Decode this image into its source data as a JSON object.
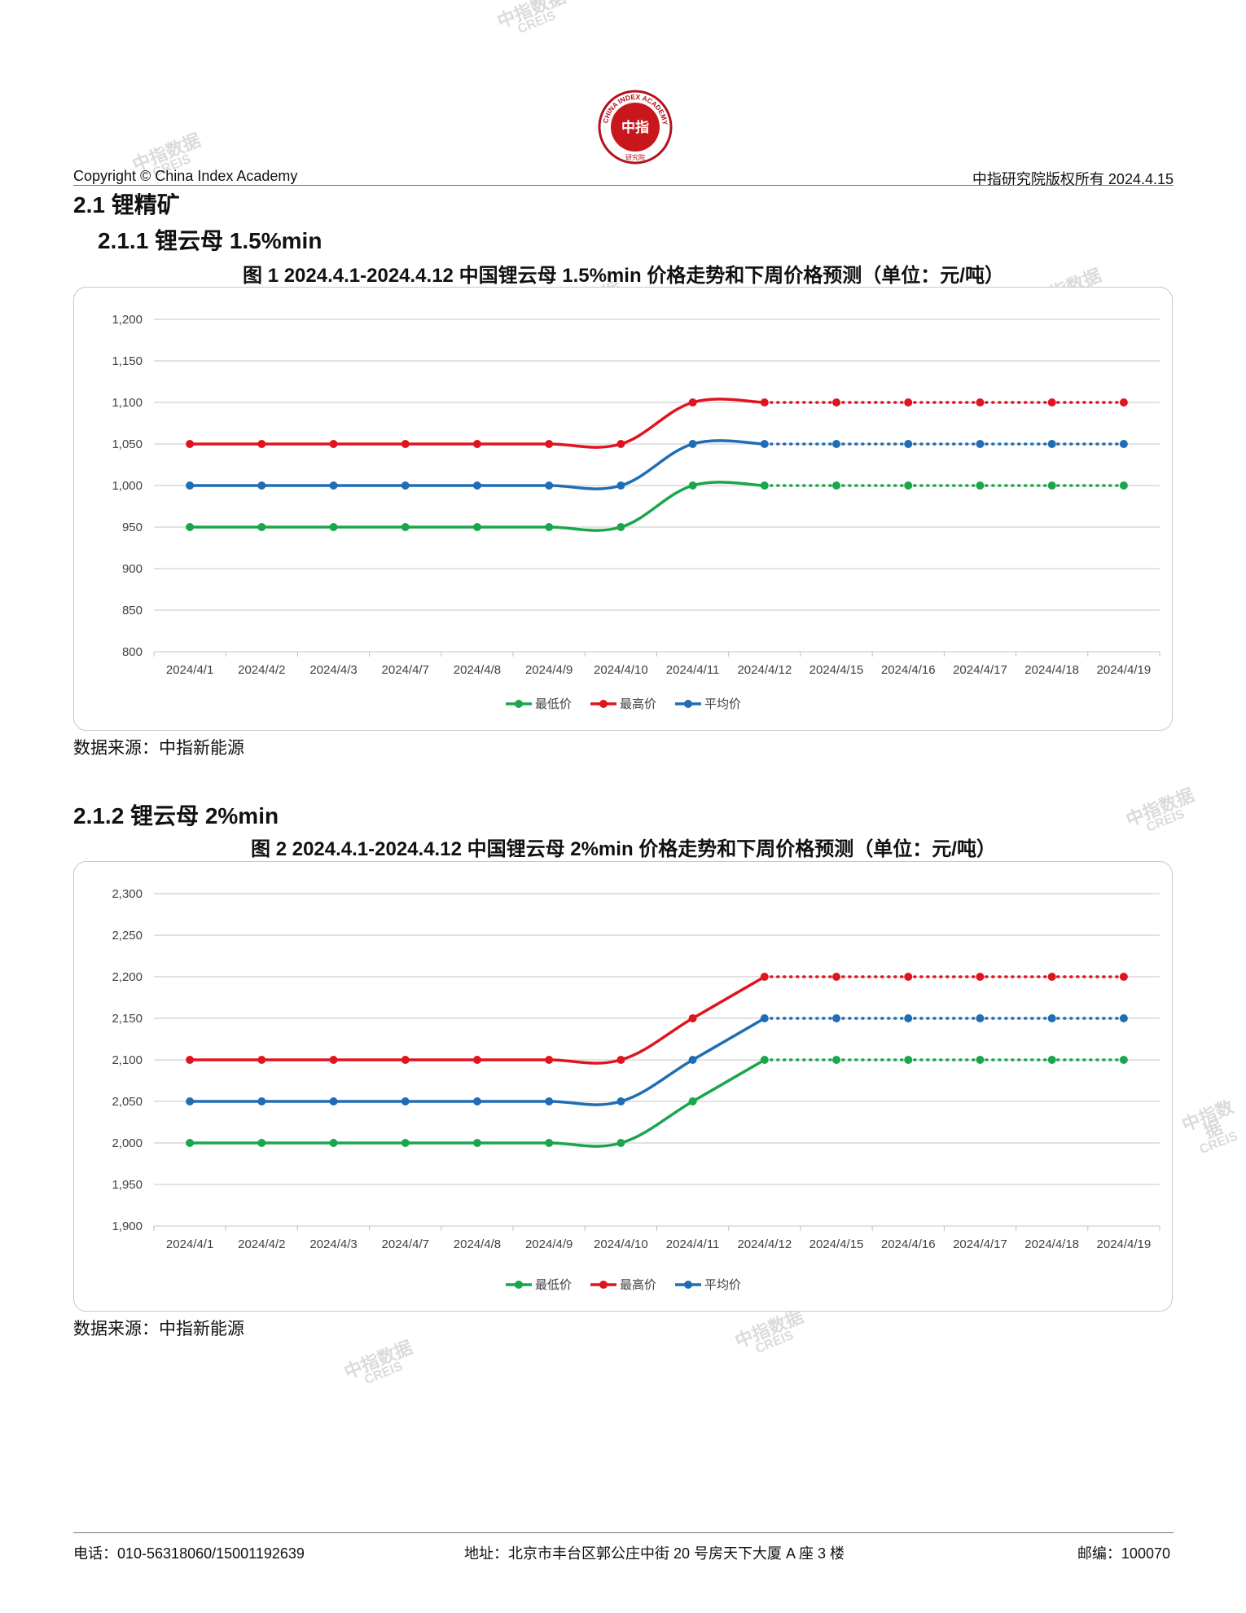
{
  "header": {
    "logo_text": "CHINA INDEX ACADEMY",
    "logo_center": "中指",
    "logo_bottom": "研究院",
    "copyright": "Copyright © China Index Academy",
    "rights": "中指研究院版权所有 2024.4.15"
  },
  "section": {
    "title": "2.1 锂精矿"
  },
  "sub1": {
    "title": "2.1.1 锂云母 1.5%min",
    "caption": "图 1 2024.4.1-2024.4.12 中国锂云母 1.5%min 价格走势和下周价格预测（单位：元/吨）",
    "source": "数据来源：中指新能源"
  },
  "sub2": {
    "title": "2.1.2 锂云母 2%min",
    "caption": "图 2 2024.4.1-2024.4.12 中国锂云母 2%min 价格走势和下周价格预测（单位：元/吨）",
    "source": "数据来源：中指新能源"
  },
  "watermark": {
    "cn": "中指数据",
    "en": "CREIS"
  },
  "footer": {
    "phone": "电话：010-56318060/15001192639",
    "address": "地址：北京市丰台区郭公庄中街 20 号房天下大厦 A 座 3 楼",
    "postcode": "邮编：100070"
  },
  "chart_data": [
    {
      "type": "line",
      "categories": [
        "2024/4/1",
        "2024/4/2",
        "2024/4/3",
        "2024/4/7",
        "2024/4/8",
        "2024/4/9",
        "2024/4/10",
        "2024/4/11",
        "2024/4/12",
        "2024/4/15",
        "2024/4/16",
        "2024/4/17",
        "2024/4/18",
        "2024/4/19"
      ],
      "ylim": [
        800,
        1200
      ],
      "yticks": [
        800,
        850,
        900,
        950,
        1000,
        1050,
        1100,
        1150,
        1200
      ],
      "ytick_labels": [
        "800",
        "850",
        "900",
        "950",
        "1,000",
        "1,050",
        "1,100",
        "1,150",
        "1,200"
      ],
      "forecast_from_index": 8,
      "grid": true,
      "legend_position": "bottom",
      "series": [
        {
          "name": "最低价",
          "color": "#1aa64a",
          "values": [
            950,
            950,
            950,
            950,
            950,
            950,
            950,
            1000,
            1000,
            1000,
            1000,
            1000,
            1000,
            1000
          ]
        },
        {
          "name": "最高价",
          "color": "#e0141e",
          "values": [
            1050,
            1050,
            1050,
            1050,
            1050,
            1050,
            1050,
            1100,
            1100,
            1100,
            1100,
            1100,
            1100,
            1100
          ]
        },
        {
          "name": "平均价",
          "color": "#1f6db5",
          "values": [
            1000,
            1000,
            1000,
            1000,
            1000,
            1000,
            1000,
            1050,
            1050,
            1050,
            1050,
            1050,
            1050,
            1050
          ]
        }
      ]
    },
    {
      "type": "line",
      "categories": [
        "2024/4/1",
        "2024/4/2",
        "2024/4/3",
        "2024/4/7",
        "2024/4/8",
        "2024/4/9",
        "2024/4/10",
        "2024/4/11",
        "2024/4/12",
        "2024/4/15",
        "2024/4/16",
        "2024/4/17",
        "2024/4/18",
        "2024/4/19"
      ],
      "ylim": [
        1900,
        2300
      ],
      "yticks": [
        1900,
        1950,
        2000,
        2050,
        2100,
        2150,
        2200,
        2250,
        2300
      ],
      "ytick_labels": [
        "1,900",
        "1,950",
        "2,000",
        "2,050",
        "2,100",
        "2,150",
        "2,200",
        "2,250",
        "2,300"
      ],
      "forecast_from_index": 8,
      "grid": true,
      "legend_position": "bottom",
      "series": [
        {
          "name": "最低价",
          "color": "#1aa64a",
          "values": [
            2000,
            2000,
            2000,
            2000,
            2000,
            2000,
            2000,
            2050,
            2100,
            2100,
            2100,
            2100,
            2100,
            2100
          ]
        },
        {
          "name": "最高价",
          "color": "#e0141e",
          "values": [
            2100,
            2100,
            2100,
            2100,
            2100,
            2100,
            2100,
            2150,
            2200,
            2200,
            2200,
            2200,
            2200,
            2200
          ]
        },
        {
          "name": "平均价",
          "color": "#1f6db5",
          "values": [
            2050,
            2050,
            2050,
            2050,
            2050,
            2050,
            2050,
            2100,
            2150,
            2150,
            2150,
            2150,
            2150,
            2150
          ]
        }
      ]
    }
  ]
}
